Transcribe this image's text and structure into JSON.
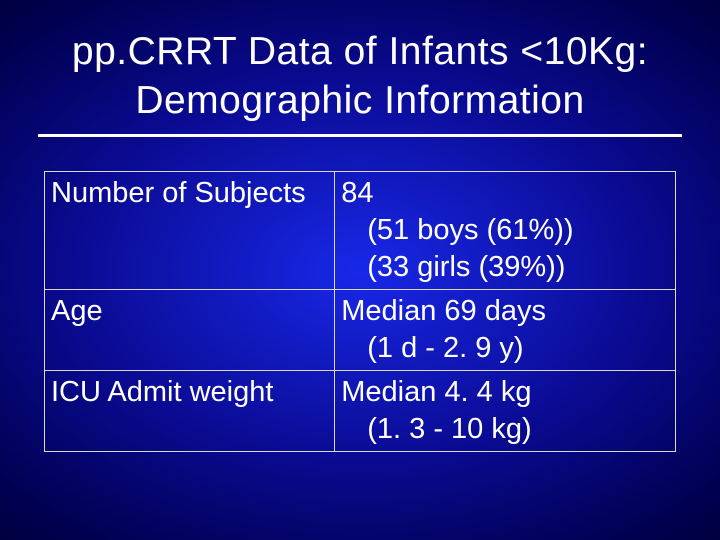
{
  "slide": {
    "title_line1": "pp.CRRT Data of Infants <10Kg:",
    "title_line2": "Demographic Information",
    "background": {
      "type": "radial-gradient",
      "center_color": "#1828e8",
      "mid_color": "#0a0a90",
      "edge_color": "#000020"
    },
    "text_color": "#ffffff",
    "border_color": "#d9d9d9",
    "title_fontsize": 39,
    "body_fontsize": 29,
    "table": {
      "rows": [
        {
          "label": "Number of Subjects",
          "value_main": "84",
          "value_sub1": "(51 boys (61%))",
          "value_sub2": "(33 girls (39%))"
        },
        {
          "label": "Age",
          "value_main": "Median 69 days",
          "value_sub1": "(1 d - 2. 9 y)",
          "value_sub2": ""
        },
        {
          "label": "ICU Admit weight",
          "value_main": "Median 4. 4 kg",
          "value_sub1": "(1. 3 - 10 kg)",
          "value_sub2": ""
        }
      ]
    }
  }
}
